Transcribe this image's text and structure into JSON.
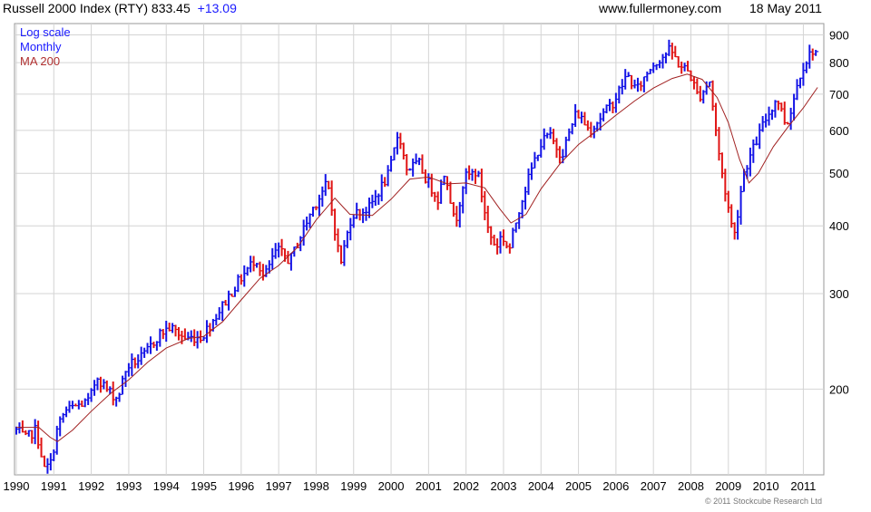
{
  "header": {
    "index_name": "Russell 2000 Index (RTY) 833.45",
    "change": "+13.09",
    "website": "www.fullermoney.com",
    "date": "18 May 2011"
  },
  "legend": [
    {
      "label": "Log scale",
      "color": "#1a1aff"
    },
    {
      "label": "Monthly",
      "color": "#1a1aff"
    },
    {
      "label": "MA 200",
      "color": "#b03030"
    }
  ],
  "copyright": "© 2011 Stockcube Research Ltd",
  "colors": {
    "up": "#1414e6",
    "down": "#e01414",
    "ma": "#a02020",
    "grid": "#d4d4d4",
    "change": "#1a1aff"
  },
  "chart_data": {
    "type": "bar",
    "scale": "log",
    "grid": true,
    "x_start_year": 1990,
    "x_end_year": 2011,
    "y_range": [
      140,
      930
    ],
    "x_ticks": [
      "1990",
      "1991",
      "1992",
      "1993",
      "1994",
      "1995",
      "1996",
      "1997",
      "1998",
      "1999",
      "2000",
      "2001",
      "2002",
      "2003",
      "2004",
      "2005",
      "2006",
      "2007",
      "2008",
      "2009",
      "2010",
      "2011"
    ],
    "y_ticks": [
      200,
      300,
      400,
      500,
      600,
      700,
      800,
      900
    ],
    "series": [
      {
        "name": "Monthly",
        "kind": "price",
        "points": [
          {
            "date": "1990.00",
            "value": 168
          },
          {
            "date": "1990.25",
            "value": 162
          },
          {
            "date": "1990.50",
            "value": 168
          },
          {
            "date": "1990.62",
            "value": 158
          },
          {
            "date": "1990.75",
            "value": 142
          },
          {
            "date": "1990.92",
            "value": 146
          },
          {
            "date": "1991.10",
            "value": 170
          },
          {
            "date": "1991.30",
            "value": 182
          },
          {
            "date": "1991.60",
            "value": 186
          },
          {
            "date": "1991.95",
            "value": 190
          },
          {
            "date": "1992.15",
            "value": 212
          },
          {
            "date": "1992.40",
            "value": 200
          },
          {
            "date": "1992.70",
            "value": 192
          },
          {
            "date": "1992.95",
            "value": 220
          },
          {
            "date": "1993.40",
            "value": 230
          },
          {
            "date": "1993.80",
            "value": 252
          },
          {
            "date": "1994.10",
            "value": 260
          },
          {
            "date": "1994.50",
            "value": 248
          },
          {
            "date": "1994.95",
            "value": 250
          },
          {
            "date": "1995.40",
            "value": 278
          },
          {
            "date": "1995.90",
            "value": 314
          },
          {
            "date": "1996.40",
            "value": 350
          },
          {
            "date": "1996.60",
            "value": 320
          },
          {
            "date": "1996.95",
            "value": 362
          },
          {
            "date": "1997.30",
            "value": 345
          },
          {
            "date": "1997.90",
            "value": 430
          },
          {
            "date": "1998.30",
            "value": 480
          },
          {
            "date": "1998.65",
            "value": 340
          },
          {
            "date": "1998.95",
            "value": 420
          },
          {
            "date": "1999.40",
            "value": 430
          },
          {
            "date": "1999.95",
            "value": 500
          },
          {
            "date": "2000.20",
            "value": 600
          },
          {
            "date": "2000.40",
            "value": 510
          },
          {
            "date": "2000.75",
            "value": 520
          },
          {
            "date": "2000.95",
            "value": 485
          },
          {
            "date": "2001.25",
            "value": 450
          },
          {
            "date": "2001.45",
            "value": 510
          },
          {
            "date": "2001.70",
            "value": 400
          },
          {
            "date": "2001.95",
            "value": 490
          },
          {
            "date": "2002.30",
            "value": 505
          },
          {
            "date": "2002.60",
            "value": 390
          },
          {
            "date": "2002.80",
            "value": 365
          },
          {
            "date": "2002.95",
            "value": 385
          },
          {
            "date": "2003.15",
            "value": 360
          },
          {
            "date": "2003.45",
            "value": 440
          },
          {
            "date": "2003.95",
            "value": 560
          },
          {
            "date": "2004.20",
            "value": 590
          },
          {
            "date": "2004.55",
            "value": 540
          },
          {
            "date": "2004.95",
            "value": 650
          },
          {
            "date": "2005.30",
            "value": 600
          },
          {
            "date": "2005.95",
            "value": 680
          },
          {
            "date": "2006.30",
            "value": 760
          },
          {
            "date": "2006.55",
            "value": 710
          },
          {
            "date": "2006.95",
            "value": 790
          },
          {
            "date": "2007.45",
            "value": 845
          },
          {
            "date": "2007.70",
            "value": 790
          },
          {
            "date": "2007.95",
            "value": 770
          },
          {
            "date": "2008.20",
            "value": 690
          },
          {
            "date": "2008.50",
            "value": 740
          },
          {
            "date": "2008.75",
            "value": 540
          },
          {
            "date": "2008.90",
            "value": 470
          },
          {
            "date": "2009.15",
            "value": 380
          },
          {
            "date": "2009.40",
            "value": 500
          },
          {
            "date": "2009.95",
            "value": 620
          },
          {
            "date": "2010.30",
            "value": 690
          },
          {
            "date": "2010.55",
            "value": 610
          },
          {
            "date": "2010.95",
            "value": 780
          },
          {
            "date": "2011.25",
            "value": 845
          },
          {
            "date": "2011.38",
            "value": 833
          }
        ]
      },
      {
        "name": "MA 200",
        "kind": "line",
        "points": [
          {
            "date": "1990.00",
            "value": 170
          },
          {
            "date": "1990.60",
            "value": 170
          },
          {
            "date": "1990.90",
            "value": 163
          },
          {
            "date": "1991.10",
            "value": 160
          },
          {
            "date": "1991.50",
            "value": 168
          },
          {
            "date": "1992.00",
            "value": 182
          },
          {
            "date": "1992.50",
            "value": 196
          },
          {
            "date": "1993.00",
            "value": 208
          },
          {
            "date": "1993.50",
            "value": 224
          },
          {
            "date": "1994.00",
            "value": 238
          },
          {
            "date": "1994.60",
            "value": 248
          },
          {
            "date": "1995.00",
            "value": 250
          },
          {
            "date": "1995.50",
            "value": 266
          },
          {
            "date": "1996.00",
            "value": 292
          },
          {
            "date": "1996.50",
            "value": 320
          },
          {
            "date": "1997.00",
            "value": 338
          },
          {
            "date": "1997.50",
            "value": 365
          },
          {
            "date": "1998.00",
            "value": 410
          },
          {
            "date": "1998.50",
            "value": 450
          },
          {
            "date": "1998.90",
            "value": 420
          },
          {
            "date": "1999.50",
            "value": 418
          },
          {
            "date": "2000.00",
            "value": 448
          },
          {
            "date": "2000.50",
            "value": 488
          },
          {
            "date": "2001.00",
            "value": 492
          },
          {
            "date": "2001.50",
            "value": 478
          },
          {
            "date": "2002.00",
            "value": 480
          },
          {
            "date": "2002.50",
            "value": 470
          },
          {
            "date": "2002.90",
            "value": 430
          },
          {
            "date": "2003.20",
            "value": 405
          },
          {
            "date": "2003.60",
            "value": 420
          },
          {
            "date": "2004.00",
            "value": 468
          },
          {
            "date": "2004.50",
            "value": 520
          },
          {
            "date": "2005.00",
            "value": 565
          },
          {
            "date": "2005.50",
            "value": 600
          },
          {
            "date": "2006.00",
            "value": 640
          },
          {
            "date": "2006.50",
            "value": 680
          },
          {
            "date": "2007.00",
            "value": 718
          },
          {
            "date": "2007.50",
            "value": 748
          },
          {
            "date": "2007.90",
            "value": 762
          },
          {
            "date": "2008.30",
            "value": 745
          },
          {
            "date": "2008.70",
            "value": 690
          },
          {
            "date": "2009.00",
            "value": 620
          },
          {
            "date": "2009.30",
            "value": 530
          },
          {
            "date": "2009.55",
            "value": 480
          },
          {
            "date": "2009.80",
            "value": 500
          },
          {
            "date": "2010.20",
            "value": 560
          },
          {
            "date": "2010.60",
            "value": 610
          },
          {
            "date": "2011.00",
            "value": 660
          },
          {
            "date": "2011.38",
            "value": 720
          }
        ]
      }
    ]
  }
}
